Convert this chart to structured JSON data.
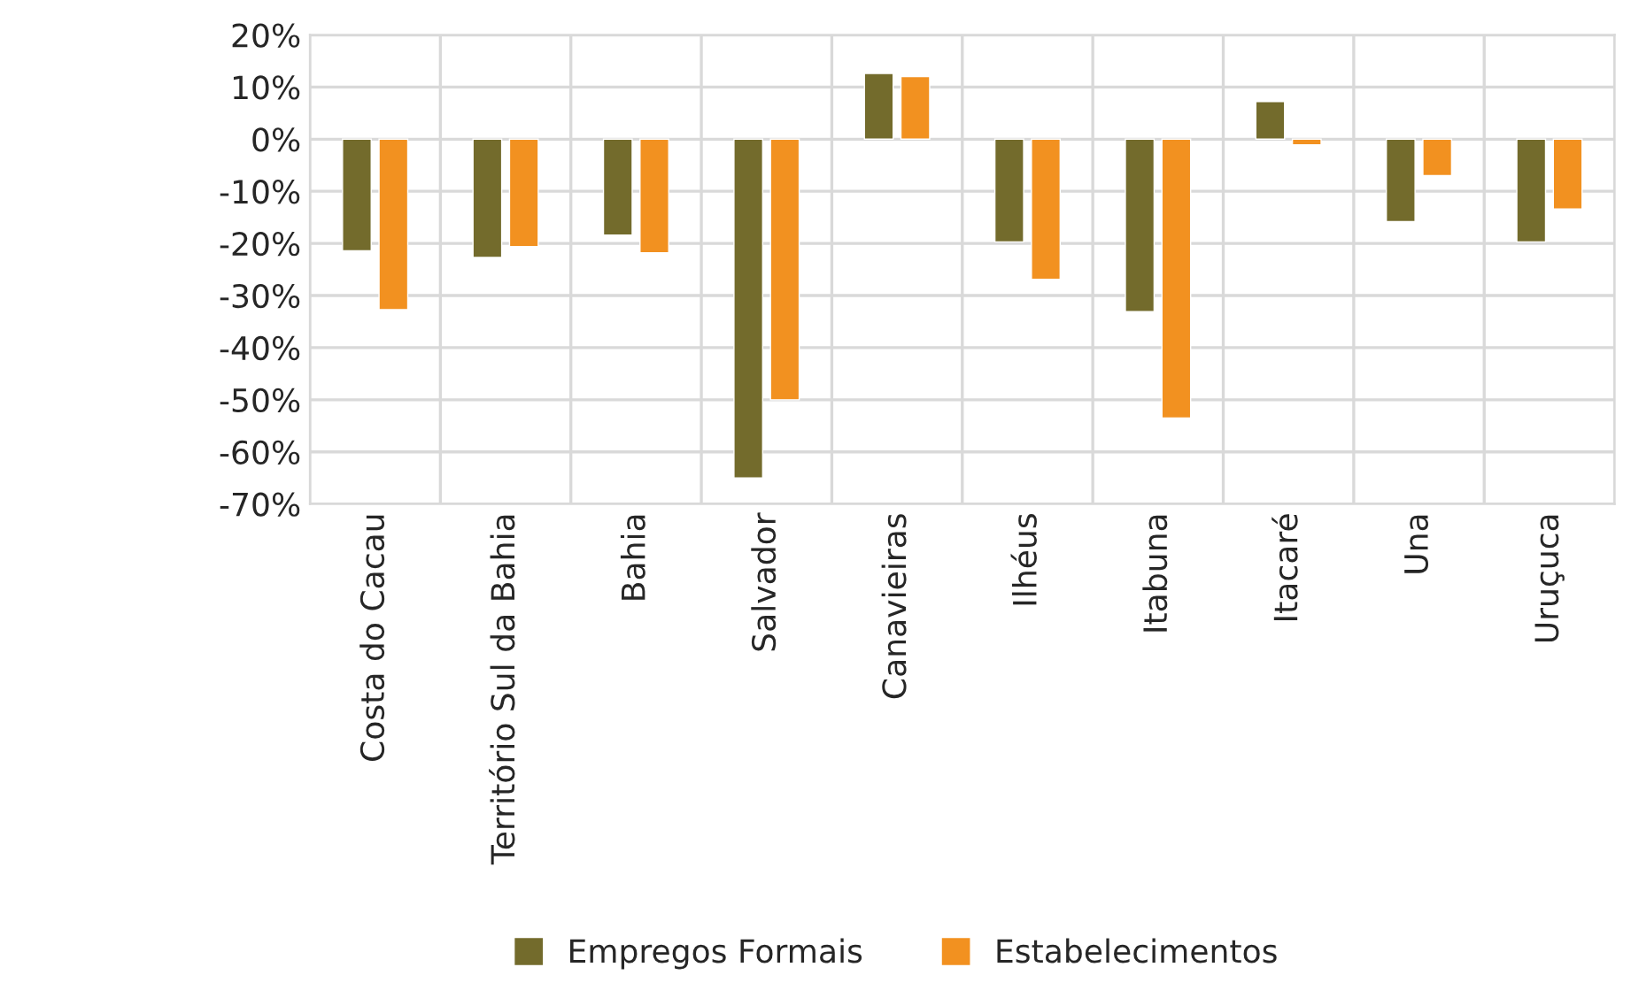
{
  "chart_data": {
    "type": "bar",
    "categories": [
      "Costa do Cacau",
      "Território Sul da Bahia",
      "Bahia",
      "Salvador",
      "Canavieiras",
      "Ilhéus",
      "Itabuna",
      "Itacaré",
      "Una",
      "Uruçuca"
    ],
    "series": [
      {
        "name": "Empregos Formais",
        "color": "#736b2c",
        "values": [
          -21.4,
          -22.7,
          -18.4,
          -65,
          12.6,
          -19.7,
          -33.1,
          7.2,
          -15.8,
          -19.7
        ]
      },
      {
        "name": "Estabelecimentos",
        "color": "#f29120",
        "values": [
          -32.7,
          -20.6,
          -21.8,
          -50,
          12.0,
          -26.9,
          -53.5,
          -1.1,
          -7.0,
          -13.4
        ]
      }
    ],
    "ylim": [
      -70,
      20
    ],
    "yticks": [
      {
        "value": -70,
        "label": "-70%"
      },
      {
        "value": -60,
        "label": "-60%"
      },
      {
        "value": -50,
        "label": "-50%"
      },
      {
        "value": -40,
        "label": "-40%"
      },
      {
        "value": -30,
        "label": "-30%"
      },
      {
        "value": -20,
        "label": "-20%"
      },
      {
        "value": -10,
        "label": "-10%"
      },
      {
        "value": 0,
        "label": "0%"
      },
      {
        "value": 10,
        "label": "10%"
      },
      {
        "value": 20,
        "label": "20%"
      }
    ],
    "grid": true,
    "legend": "bottom"
  }
}
